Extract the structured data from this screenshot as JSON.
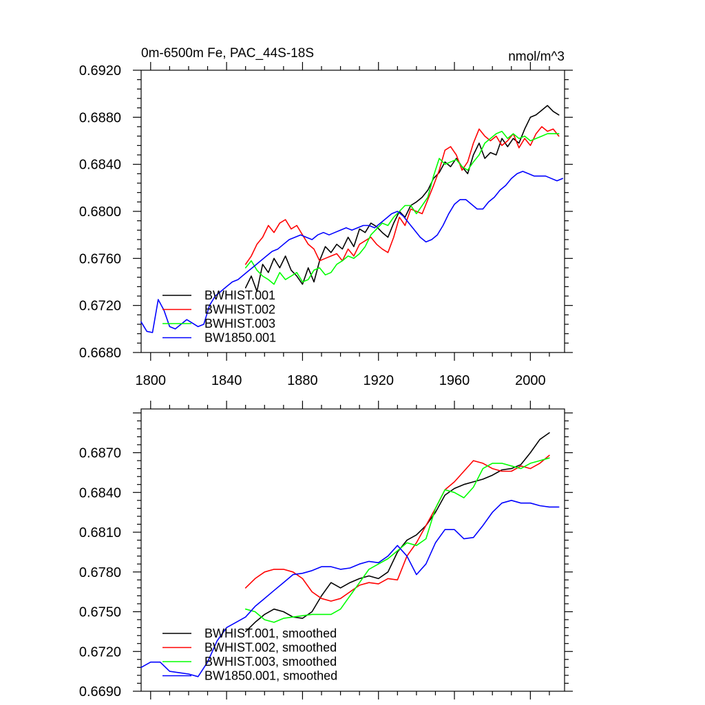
{
  "top_panel": {
    "title_left": "0m-6500m Fe, PAC_44S-18S",
    "title_right": "nmol/m^3"
  },
  "colors": {
    "BWHIST.001": "#000000",
    "BWHIST.002": "#ff0000",
    "BWHIST.003": "#00ff00",
    "BW1850.001": "#0000ff"
  },
  "chart_data": [
    {
      "type": "line",
      "title": "0m-6500m Fe, PAC_44S-18S",
      "subtitle": "nmol/m^3",
      "xlim": [
        1795,
        2018
      ],
      "ylim": [
        0.668,
        0.692
      ],
      "x_ticks": [
        1800,
        1840,
        1880,
        1920,
        1960,
        2000
      ],
      "y_ticks": [
        "0.6680",
        "0.6720",
        "0.6760",
        "0.6800",
        "0.6840",
        "0.6880",
        "0.6920"
      ],
      "legend_position": "bottom-left",
      "series": [
        {
          "name": "BWHIST.001",
          "color": "#000000",
          "x": [
            1850,
            1853,
            1856,
            1859,
            1862,
            1865,
            1868,
            1871,
            1874,
            1877,
            1880,
            1883,
            1886,
            1889,
            1892,
            1895,
            1898,
            1901,
            1904,
            1907,
            1910,
            1913,
            1916,
            1919,
            1922,
            1925,
            1928,
            1931,
            1934,
            1937,
            1940,
            1943,
            1946,
            1949,
            1952,
            1955,
            1958,
            1961,
            1964,
            1967,
            1970,
            1973,
            1976,
            1979,
            1982,
            1985,
            1988,
            1991,
            1994,
            1997,
            2000,
            2003,
            2006,
            2009,
            2012,
            2015
          ],
          "y": [
            0.6735,
            0.6745,
            0.6732,
            0.6755,
            0.6748,
            0.676,
            0.6752,
            0.6762,
            0.675,
            0.6745,
            0.6738,
            0.6752,
            0.674,
            0.6758,
            0.677,
            0.6765,
            0.6772,
            0.6768,
            0.6778,
            0.677,
            0.6785,
            0.6782,
            0.679,
            0.6787,
            0.6782,
            0.6778,
            0.679,
            0.68,
            0.6795,
            0.6805,
            0.6808,
            0.6812,
            0.6818,
            0.6828,
            0.6833,
            0.6842,
            0.6838,
            0.6845,
            0.6838,
            0.6832,
            0.6848,
            0.6858,
            0.6845,
            0.685,
            0.6848,
            0.6862,
            0.6855,
            0.6862,
            0.6858,
            0.687,
            0.688,
            0.6882,
            0.6886,
            0.689,
            0.6885,
            0.6882
          ]
        },
        {
          "name": "BWHIST.002",
          "color": "#ff0000",
          "x": [
            1850,
            1853,
            1856,
            1859,
            1862,
            1865,
            1868,
            1871,
            1874,
            1877,
            1880,
            1883,
            1886,
            1889,
            1892,
            1895,
            1898,
            1901,
            1904,
            1907,
            1910,
            1913,
            1916,
            1919,
            1922,
            1925,
            1928,
            1931,
            1934,
            1937,
            1940,
            1943,
            1946,
            1949,
            1952,
            1955,
            1958,
            1961,
            1964,
            1967,
            1970,
            1973,
            1976,
            1979,
            1982,
            1985,
            1988,
            1991,
            1994,
            1997,
            2000,
            2003,
            2006,
            2009,
            2012,
            2015
          ],
          "y": [
            0.6755,
            0.6762,
            0.6772,
            0.6778,
            0.6788,
            0.6782,
            0.679,
            0.6793,
            0.6785,
            0.6788,
            0.678,
            0.6772,
            0.6768,
            0.6758,
            0.676,
            0.6762,
            0.6764,
            0.6758,
            0.6768,
            0.6762,
            0.6772,
            0.6775,
            0.6778,
            0.6772,
            0.6768,
            0.6765,
            0.6778,
            0.6795,
            0.6788,
            0.6802,
            0.68,
            0.6798,
            0.681,
            0.6822,
            0.6835,
            0.6852,
            0.6855,
            0.6848,
            0.6835,
            0.6842,
            0.6858,
            0.687,
            0.6864,
            0.686,
            0.6864,
            0.6856,
            0.686,
            0.6866,
            0.6854,
            0.6862,
            0.6856,
            0.6866,
            0.6872,
            0.6868,
            0.687,
            0.6864
          ]
        },
        {
          "name": "BWHIST.003",
          "color": "#00ff00",
          "x": [
            1850,
            1853,
            1856,
            1859,
            1862,
            1865,
            1868,
            1871,
            1874,
            1877,
            1880,
            1883,
            1886,
            1889,
            1892,
            1895,
            1898,
            1901,
            1904,
            1907,
            1910,
            1913,
            1916,
            1919,
            1922,
            1925,
            1928,
            1931,
            1934,
            1937,
            1940,
            1943,
            1946,
            1949,
            1952,
            1955,
            1958,
            1961,
            1964,
            1967,
            1970,
            1973,
            1976,
            1979,
            1982,
            1985,
            1988,
            1991,
            1994,
            1997,
            2000,
            2003,
            2006,
            2009,
            2012,
            2015
          ],
          "y": [
            0.6752,
            0.6758,
            0.675,
            0.6745,
            0.6742,
            0.6738,
            0.6748,
            0.6742,
            0.6745,
            0.6748,
            0.674,
            0.6742,
            0.675,
            0.6752,
            0.6746,
            0.6748,
            0.6755,
            0.6758,
            0.6762,
            0.676,
            0.6764,
            0.677,
            0.678,
            0.6785,
            0.679,
            0.6788,
            0.6795,
            0.68,
            0.6805,
            0.6805,
            0.6798,
            0.6805,
            0.6812,
            0.683,
            0.6845,
            0.684,
            0.6842,
            0.6844,
            0.6838,
            0.6835,
            0.6842,
            0.6848,
            0.6858,
            0.6862,
            0.6866,
            0.6868,
            0.6862,
            0.6866,
            0.6862,
            0.6864,
            0.686,
            0.6862,
            0.6864,
            0.6866,
            0.6866,
            0.6866
          ]
        },
        {
          "name": "BW1850.001",
          "color": "#0000ff",
          "x": [
            1795,
            1798,
            1801,
            1804,
            1807,
            1810,
            1813,
            1816,
            1819,
            1822,
            1825,
            1828,
            1831,
            1834,
            1837,
            1840,
            1843,
            1846,
            1849,
            1852,
            1855,
            1858,
            1861,
            1864,
            1867,
            1870,
            1873,
            1876,
            1879,
            1882,
            1885,
            1888,
            1891,
            1894,
            1897,
            1900,
            1903,
            1906,
            1909,
            1912,
            1915,
            1918,
            1921,
            1924,
            1927,
            1930,
            1933,
            1936,
            1939,
            1942,
            1945,
            1948,
            1951,
            1954,
            1957,
            1960,
            1963,
            1966,
            1969,
            1972,
            1975,
            1978,
            1981,
            1984,
            1987,
            1990,
            1993,
            1996,
            1999,
            2002,
            2005,
            2008,
            2011,
            2014,
            2017
          ],
          "y": [
            0.6706,
            0.6698,
            0.6697,
            0.6725,
            0.6716,
            0.6702,
            0.67,
            0.6704,
            0.6708,
            0.6705,
            0.6702,
            0.6704,
            0.672,
            0.6728,
            0.6732,
            0.6736,
            0.674,
            0.6742,
            0.6746,
            0.675,
            0.6754,
            0.6758,
            0.6762,
            0.6766,
            0.6768,
            0.6772,
            0.6776,
            0.6778,
            0.678,
            0.6778,
            0.6776,
            0.678,
            0.6782,
            0.678,
            0.6782,
            0.6784,
            0.6786,
            0.6784,
            0.6786,
            0.6788,
            0.6788,
            0.6786,
            0.679,
            0.6794,
            0.6798,
            0.68,
            0.6796,
            0.679,
            0.6784,
            0.6778,
            0.6774,
            0.6776,
            0.678,
            0.6788,
            0.6798,
            0.6806,
            0.681,
            0.681,
            0.6806,
            0.6802,
            0.6802,
            0.6808,
            0.6812,
            0.6818,
            0.6822,
            0.6828,
            0.6832,
            0.6834,
            0.6832,
            0.683,
            0.683,
            0.683,
            0.6828,
            0.6826,
            0.6828
          ]
        }
      ]
    },
    {
      "type": "line",
      "xlim": [
        1795,
        2018
      ],
      "ylim": [
        0.669,
        0.6903
      ],
      "x_ticks": [
        1800,
        1840,
        1880,
        1920,
        1960,
        2000
      ],
      "y_ticks": [
        "0.6690",
        "0.6720",
        "0.6750",
        "0.6780",
        "0.6810",
        "0.6840",
        "0.6870"
      ],
      "legend_position": "bottom-left",
      "series": [
        {
          "name": "BWHIST.001, smoothed",
          "color": "#000000",
          "x": [
            1850,
            1855,
            1860,
            1865,
            1870,
            1875,
            1880,
            1885,
            1890,
            1895,
            1900,
            1905,
            1910,
            1915,
            1920,
            1925,
            1930,
            1935,
            1940,
            1945,
            1950,
            1955,
            1960,
            1965,
            1970,
            1975,
            1980,
            1985,
            1990,
            1995,
            2000,
            2005,
            2010
          ],
          "y": [
            0.6735,
            0.6742,
            0.6748,
            0.6752,
            0.675,
            0.6746,
            0.6745,
            0.675,
            0.6762,
            0.6772,
            0.6768,
            0.6772,
            0.6775,
            0.6777,
            0.6775,
            0.678,
            0.6795,
            0.6804,
            0.6808,
            0.6815,
            0.6825,
            0.6838,
            0.6843,
            0.6846,
            0.6848,
            0.685,
            0.6853,
            0.6857,
            0.6858,
            0.6861,
            0.687,
            0.688,
            0.6885
          ]
        },
        {
          "name": "BWHIST.002, smoothed",
          "color": "#ff0000",
          "x": [
            1850,
            1855,
            1860,
            1865,
            1870,
            1875,
            1880,
            1885,
            1890,
            1895,
            1900,
            1905,
            1910,
            1915,
            1920,
            1925,
            1930,
            1935,
            1940,
            1945,
            1950,
            1955,
            1960,
            1965,
            1970,
            1975,
            1980,
            1985,
            1990,
            1995,
            2000,
            2005,
            2010
          ],
          "y": [
            0.6768,
            0.6775,
            0.678,
            0.6782,
            0.6782,
            0.678,
            0.6775,
            0.6765,
            0.676,
            0.6758,
            0.676,
            0.6765,
            0.677,
            0.6772,
            0.6771,
            0.6775,
            0.6774,
            0.6792,
            0.6802,
            0.6815,
            0.6828,
            0.6842,
            0.6848,
            0.6856,
            0.6864,
            0.6862,
            0.6858,
            0.6856,
            0.6856,
            0.686,
            0.6858,
            0.6862,
            0.6868
          ]
        },
        {
          "name": "BWHIST.003, smoothed",
          "color": "#00ff00",
          "x": [
            1850,
            1855,
            1860,
            1865,
            1870,
            1875,
            1880,
            1885,
            1890,
            1895,
            1900,
            1905,
            1910,
            1915,
            1920,
            1925,
            1930,
            1935,
            1940,
            1945,
            1950,
            1955,
            1960,
            1965,
            1970,
            1975,
            1980,
            1985,
            1990,
            1995,
            2000,
            2005,
            2010
          ],
          "y": [
            0.6752,
            0.675,
            0.6744,
            0.6742,
            0.6745,
            0.6746,
            0.6747,
            0.6748,
            0.6748,
            0.6748,
            0.6752,
            0.6762,
            0.6772,
            0.6782,
            0.6786,
            0.679,
            0.6796,
            0.6802,
            0.68,
            0.6805,
            0.6828,
            0.6842,
            0.684,
            0.6836,
            0.6844,
            0.6858,
            0.6862,
            0.6862,
            0.686,
            0.6858,
            0.6862,
            0.6864,
            0.6866
          ]
        },
        {
          "name": "BW1850.001, smoothed",
          "color": "#0000ff",
          "x": [
            1795,
            1800,
            1805,
            1810,
            1815,
            1820,
            1825,
            1830,
            1835,
            1840,
            1845,
            1850,
            1855,
            1860,
            1865,
            1870,
            1875,
            1880,
            1885,
            1890,
            1895,
            1900,
            1905,
            1910,
            1915,
            1920,
            1925,
            1930,
            1935,
            1940,
            1945,
            1950,
            1955,
            1960,
            1965,
            1970,
            1975,
            1980,
            1985,
            1990,
            1995,
            2000,
            2005,
            2010,
            2015
          ],
          "y": [
            0.6708,
            0.6712,
            0.6712,
            0.6705,
            0.6704,
            0.6703,
            0.6701,
            0.6712,
            0.6728,
            0.6738,
            0.6742,
            0.6746,
            0.6754,
            0.676,
            0.6766,
            0.6772,
            0.6778,
            0.6779,
            0.6781,
            0.6784,
            0.6784,
            0.6782,
            0.6783,
            0.6786,
            0.6788,
            0.6787,
            0.6792,
            0.68,
            0.6792,
            0.6778,
            0.6786,
            0.6802,
            0.6812,
            0.6812,
            0.6805,
            0.6806,
            0.6815,
            0.6825,
            0.6832,
            0.6834,
            0.6832,
            0.6832,
            0.683,
            0.6829,
            0.6829
          ]
        }
      ]
    }
  ]
}
